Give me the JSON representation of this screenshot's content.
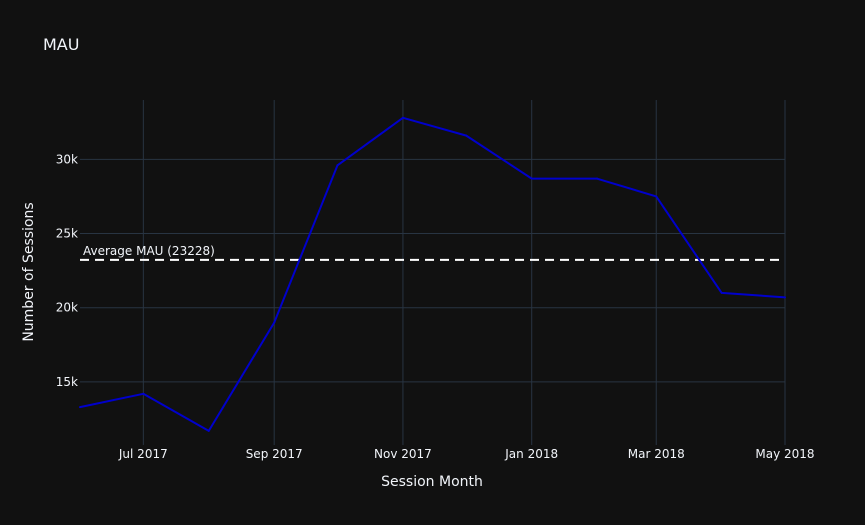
{
  "chart_data": {
    "type": "line",
    "title": "MAU",
    "xlabel": "Session Month",
    "ylabel": "Number of Sessions",
    "x": [
      "2017-06",
      "2017-07",
      "2017-08",
      "2017-09",
      "2017-10",
      "2017-11",
      "2017-12",
      "2018-01",
      "2018-02",
      "2018-03",
      "2018-04",
      "2018-05"
    ],
    "series": [
      {
        "values": [
          13300,
          14200,
          11700,
          19000,
          29600,
          32800,
          31600,
          28700,
          28700,
          27500,
          21000,
          20700
        ]
      }
    ],
    "x_tick_labels": [
      "Jul 2017",
      "Sep 2017",
      "Nov 2017",
      "Jan 2018",
      "Mar 2018",
      "May 2018"
    ],
    "x_tick_positions": [
      "2017-07",
      "2017-09",
      "2017-11",
      "2018-01",
      "2018-03",
      "2018-05"
    ],
    "y_ticks": [
      15000,
      20000,
      25000,
      30000
    ],
    "y_tick_labels": [
      "15k",
      "20k",
      "25k",
      "30k"
    ],
    "ylim": [
      10750,
      34000
    ],
    "average": {
      "value": 23228,
      "label": "Average MAU (23228)"
    },
    "grid": true,
    "colors": {
      "background": "#111111",
      "line": "#0000cc",
      "average_line": "#ffffff",
      "grid": "#283442",
      "text": "#f2f5fa"
    }
  }
}
